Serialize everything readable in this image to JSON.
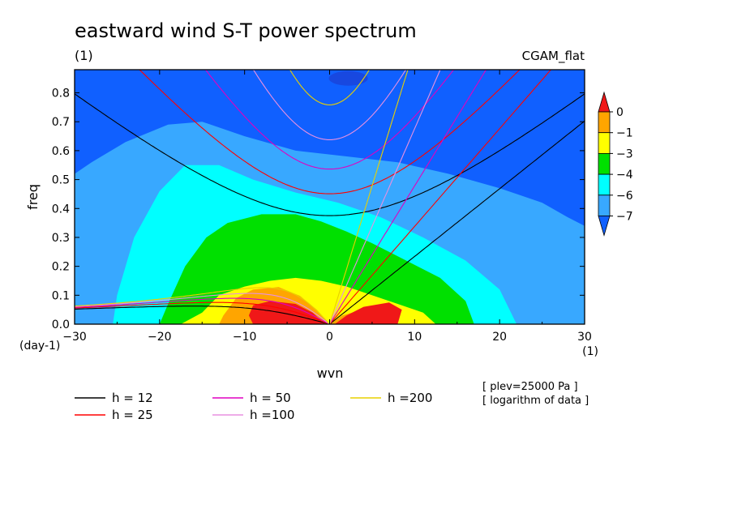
{
  "chart_data": {
    "type": "heatmap",
    "title": "eastward wind S-T power spectrum",
    "subtitle_left": "(1)",
    "subtitle_right": "CGAM_flat",
    "xlabel": "wvn",
    "ylabel": "freq",
    "x_unit": "(1)",
    "y_unit": "(day-1)",
    "xlim": [
      -30,
      30
    ],
    "ylim": [
      0,
      0.88
    ],
    "xticks": [
      -30,
      -20,
      -10,
      0,
      10,
      20,
      30
    ],
    "yticks": [
      0,
      0.1,
      0.2,
      0.3,
      0.4,
      0.5,
      0.6,
      0.7,
      0.8
    ],
    "notes": [
      "[ plev=25000 Pa ]",
      "[ logarithm of data ]"
    ],
    "colorbar": {
      "levels": [
        0,
        -1,
        -3,
        -4,
        -6,
        -7
      ],
      "colors": [
        "#f01818",
        "#ffa500",
        "#ffff00",
        "#00e000",
        "#00ffff",
        "#38a8ff",
        "#1060ff"
      ]
    },
    "field": {
      "description_levels": [
        0,
        -1,
        -3,
        -4,
        -6,
        -7
      ],
      "peak": {
        "wvn": -5,
        "freq": 0.05
      },
      "regions": [
        {
          "level": 0,
          "points": [
            [
              0,
              0
            ],
            [
              -1.5,
              0.05
            ],
            [
              -3.5,
              0.098
            ],
            [
              -6,
              0.128
            ],
            [
              -9,
              0.12
            ],
            [
              -11,
              0.09
            ],
            [
              -12.5,
              0.03
            ],
            [
              -13,
              0
            ],
            [
              8,
              0
            ],
            [
              7,
              0.03
            ],
            [
              5,
              0.06
            ],
            [
              1.5,
              0.03
            ]
          ]
        },
        {
          "level": -1,
          "points": [
            [
              -17.5,
              0
            ],
            [
              -15,
              0.04
            ],
            [
              -13,
              0.1
            ],
            [
              -10,
              0.13
            ],
            [
              -7,
              0.15
            ],
            [
              -4,
              0.16
            ],
            [
              -1,
              0.15
            ],
            [
              2,
              0.13
            ],
            [
              4,
              0.11
            ],
            [
              8,
              0.07
            ],
            [
              11,
              0.04
            ],
            [
              12.5,
              0
            ]
          ]
        },
        {
          "level": -3,
          "points": [
            [
              -20,
              0
            ],
            [
              -19,
              0.07
            ],
            [
              -17,
              0.2
            ],
            [
              -14.5,
              0.3
            ],
            [
              -12,
              0.35
            ],
            [
              -8,
              0.38
            ],
            [
              -4,
              0.38
            ],
            [
              -1,
              0.355
            ],
            [
              2,
              0.32
            ],
            [
              5,
              0.28
            ],
            [
              9,
              0.22
            ],
            [
              13,
              0.16
            ],
            [
              16,
              0.08
            ],
            [
              17,
              0
            ]
          ]
        },
        {
          "level": -4,
          "points": [
            [
              -25.5,
              0
            ],
            [
              -25,
              0.1
            ],
            [
              -23,
              0.3
            ],
            [
              -20,
              0.46
            ],
            [
              -17,
              0.55
            ],
            [
              -13,
              0.55
            ],
            [
              -9,
              0.5
            ],
            [
              -4,
              0.455
            ],
            [
              1,
              0.42
            ],
            [
              6,
              0.37
            ],
            [
              11,
              0.3
            ],
            [
              16,
              0.22
            ],
            [
              20,
              0.12
            ],
            [
              22,
              0
            ]
          ]
        },
        {
          "level": -6,
          "points": [
            [
              -30,
              0
            ],
            [
              -30,
              0.52
            ],
            [
              -28,
              0.56
            ],
            [
              -24,
              0.63
            ],
            [
              -19,
              0.69
            ],
            [
              -15,
              0.7
            ],
            [
              -10,
              0.65
            ],
            [
              -4,
              0.6
            ],
            [
              2,
              0.58
            ],
            [
              8,
              0.56
            ],
            [
              14,
              0.52
            ],
            [
              20,
              0.47
            ],
            [
              25,
              0.42
            ],
            [
              28,
              0.37
            ],
            [
              30,
              0.34
            ],
            [
              30,
              0
            ]
          ]
        }
      ]
    },
    "curves": {
      "equivalent_depths": [
        12,
        25,
        50,
        100,
        200
      ],
      "legend": [
        {
          "label": "h = 12",
          "color": "#000000"
        },
        {
          "label": "h = 25",
          "color": "#ff0000"
        },
        {
          "label": "h = 50",
          "color": "#e000c0"
        },
        {
          "label": "h =100",
          "color": "#e890e0"
        },
        {
          "label": "h =200",
          "color": "#e8d000"
        }
      ]
    }
  }
}
